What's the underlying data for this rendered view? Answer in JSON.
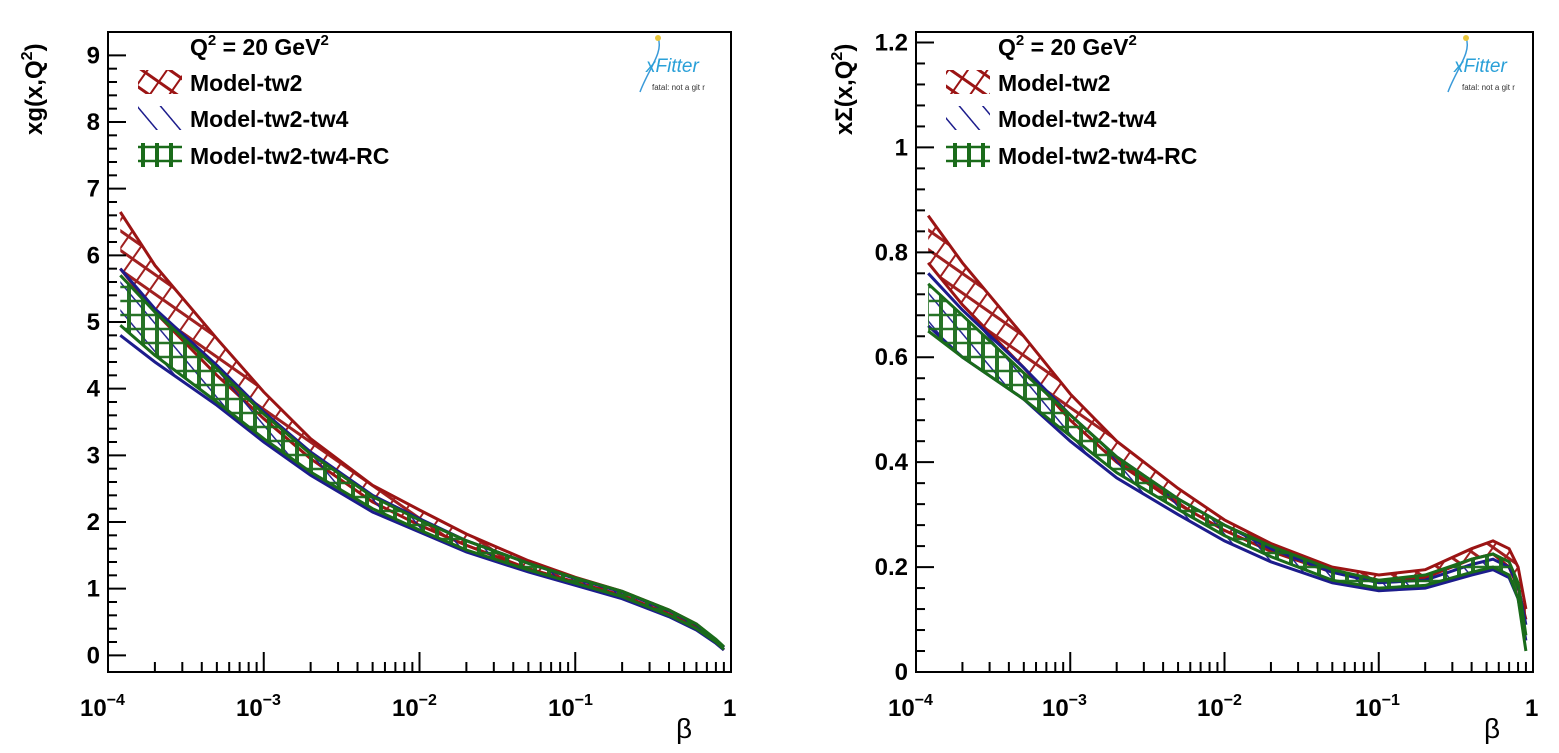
{
  "chart_data": [
    {
      "type": "area",
      "ylabel_main": "xg(x,Q",
      "ylabel_sup": "2",
      "ylabel_close": ")",
      "xlabel": "β",
      "xscale": "log",
      "xlim": [
        0.0001,
        1
      ],
      "ylim": [
        -0.25,
        9.35
      ],
      "x_tick_labels": [
        {
          "base": "10",
          "exp": "−4",
          "value": 0.0001
        },
        {
          "base": "10",
          "exp": "−3",
          "value": 0.001
        },
        {
          "base": "10",
          "exp": "−2",
          "value": 0.01
        },
        {
          "base": "10",
          "exp": "−1",
          "value": 0.1
        },
        {
          "base": "1",
          "exp": "",
          "value": 1
        }
      ],
      "y_ticks": [
        0,
        1,
        2,
        3,
        4,
        5,
        6,
        7,
        8,
        9
      ],
      "y_tick_labels": [
        "0",
        "1",
        "2",
        "3",
        "4",
        "5",
        "6",
        "7",
        "8",
        "9"
      ],
      "legend": {
        "q2_main": "Q",
        "q2_sup": "2",
        "q2_mid": " = 20 GeV",
        "q2_sup2": "2",
        "entries": [
          "Model-tw2",
          "Model-tw2-tw4",
          "Model-tw2-tw4-RC"
        ],
        "placement": "top-left"
      },
      "logo": {
        "text": "xFitter",
        "caption": "fatal: not a git r"
      },
      "x": [
        0.00012,
        0.0002,
        0.0005,
        0.001,
        0.002,
        0.005,
        0.01,
        0.02,
        0.05,
        0.1,
        0.2,
        0.4,
        0.6,
        0.8,
        0.9
      ],
      "series": [
        {
          "name": "Model-tw2",
          "color": "#9b1414",
          "lower": [
            5.8,
            5.15,
            4.2,
            3.55,
            2.95,
            2.3,
            1.95,
            1.65,
            1.3,
            1.1,
            0.9,
            0.62,
            0.42,
            0.2,
            0.08
          ],
          "upper": [
            6.65,
            5.85,
            4.75,
            3.95,
            3.25,
            2.55,
            2.18,
            1.82,
            1.42,
            1.17,
            0.96,
            0.68,
            0.47,
            0.23,
            0.12
          ]
        },
        {
          "name": "Model-tw2-tw4",
          "color": "#1c1c8c",
          "lower": [
            4.8,
            4.4,
            3.75,
            3.2,
            2.7,
            2.15,
            1.85,
            1.55,
            1.25,
            1.05,
            0.85,
            0.58,
            0.38,
            0.18,
            0.08
          ],
          "upper": [
            5.8,
            5.2,
            4.35,
            3.65,
            3.05,
            2.4,
            2.05,
            1.72,
            1.38,
            1.15,
            0.95,
            0.67,
            0.46,
            0.23,
            0.12
          ]
        },
        {
          "name": "Model-tw2-tw4-RC",
          "color": "#1a6b1a",
          "lower": [
            4.95,
            4.5,
            3.8,
            3.25,
            2.75,
            2.2,
            1.88,
            1.58,
            1.28,
            1.08,
            0.88,
            0.6,
            0.4,
            0.2,
            0.09
          ],
          "upper": [
            5.7,
            5.15,
            4.3,
            3.62,
            3.02,
            2.38,
            2.03,
            1.72,
            1.38,
            1.16,
            0.96,
            0.68,
            0.47,
            0.24,
            0.13
          ]
        }
      ]
    },
    {
      "type": "area",
      "ylabel_main": "xΣ(x,Q",
      "ylabel_sup": "2",
      "ylabel_close": ")",
      "xlabel": "β",
      "xscale": "log",
      "xlim": [
        0.0001,
        1
      ],
      "ylim": [
        0,
        1.22
      ],
      "x_tick_labels": [
        {
          "base": "10",
          "exp": "−4",
          "value": 0.0001
        },
        {
          "base": "10",
          "exp": "−3",
          "value": 0.001
        },
        {
          "base": "10",
          "exp": "−2",
          "value": 0.01
        },
        {
          "base": "10",
          "exp": "−1",
          "value": 0.1
        },
        {
          "base": "1",
          "exp": "",
          "value": 1
        }
      ],
      "y_ticks": [
        0,
        0.2,
        0.4,
        0.6,
        0.8,
        1,
        1.2
      ],
      "y_tick_labels": [
        "0",
        "0.2",
        "0.4",
        "0.6",
        "0.8",
        "1",
        "1.2"
      ],
      "legend": {
        "q2_main": "Q",
        "q2_sup": "2",
        "q2_mid": " = 20 GeV",
        "q2_sup2": "2",
        "entries": [
          "Model-tw2",
          "Model-tw2-tw4",
          "Model-tw2-tw4-RC"
        ],
        "placement": "top-left"
      },
      "logo": {
        "text": "xFitter",
        "caption": "fatal: not a git r"
      },
      "x": [
        0.00012,
        0.0002,
        0.0005,
        0.001,
        0.002,
        0.005,
        0.01,
        0.02,
        0.05,
        0.1,
        0.2,
        0.4,
        0.55,
        0.7,
        0.8,
        0.9
      ],
      "series": [
        {
          "name": "Model-tw2",
          "color": "#9b1414",
          "lower": [
            0.78,
            0.7,
            0.58,
            0.48,
            0.4,
            0.32,
            0.27,
            0.23,
            0.19,
            0.175,
            0.18,
            0.215,
            0.225,
            0.2,
            0.16,
            0.1
          ],
          "upper": [
            0.87,
            0.78,
            0.64,
            0.53,
            0.44,
            0.35,
            0.29,
            0.245,
            0.2,
            0.185,
            0.195,
            0.235,
            0.25,
            0.235,
            0.2,
            0.12
          ]
        },
        {
          "name": "Model-tw2-tw4",
          "color": "#1c1c8c",
          "lower": [
            0.66,
            0.6,
            0.52,
            0.44,
            0.37,
            0.3,
            0.25,
            0.21,
            0.17,
            0.155,
            0.16,
            0.185,
            0.195,
            0.18,
            0.14,
            0.06
          ],
          "upper": [
            0.76,
            0.69,
            0.58,
            0.49,
            0.41,
            0.33,
            0.28,
            0.235,
            0.19,
            0.17,
            0.175,
            0.205,
            0.215,
            0.2,
            0.165,
            0.09
          ]
        },
        {
          "name": "Model-tw2-tw4-RC",
          "color": "#1a6b1a",
          "lower": [
            0.65,
            0.6,
            0.52,
            0.45,
            0.38,
            0.31,
            0.26,
            0.22,
            0.175,
            0.16,
            0.165,
            0.19,
            0.2,
            0.185,
            0.14,
            0.04
          ],
          "upper": [
            0.74,
            0.68,
            0.57,
            0.49,
            0.41,
            0.33,
            0.28,
            0.24,
            0.195,
            0.175,
            0.185,
            0.215,
            0.225,
            0.21,
            0.17,
            0.07
          ]
        }
      ]
    }
  ]
}
